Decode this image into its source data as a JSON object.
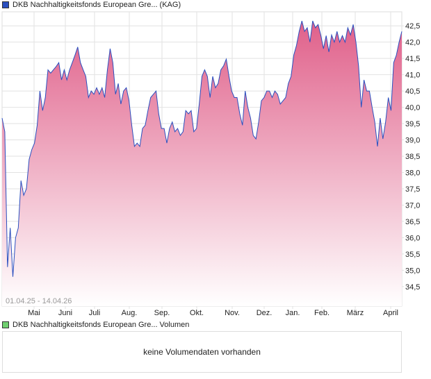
{
  "price_legend": {
    "label": "DKB Nachhaltigkeitsfonds European Gre... (KAG)",
    "color": "#2a4fbf"
  },
  "volume_legend": {
    "label": "DKB Nachhaltigkeitsfonds European Gre... Volumen",
    "color": "#6fcf6f",
    "empty_text": "keine Volumendaten vorhanden"
  },
  "chart_data": {
    "type": "area",
    "date_range": "01.04.25 - 14.04.26",
    "x_tick_labels": [
      "Mai",
      "Juni",
      "Juli",
      "Aug.",
      "Sep.",
      "Okt.",
      "Nov.",
      "Dez.",
      "Jan.",
      "Feb.",
      "März",
      "April"
    ],
    "y_ticks": [
      34.5,
      35.0,
      35.5,
      36.0,
      36.5,
      37.0,
      37.5,
      38.0,
      38.5,
      39.0,
      39.5,
      40.0,
      40.5,
      41.0,
      41.5,
      42.0,
      42.5
    ],
    "y_tick_labels": [
      "34,5",
      "35,0",
      "35,5",
      "36,0",
      "36,5",
      "37,0",
      "37,5",
      "38,0",
      "38,5",
      "39,0",
      "39,5",
      "40,0",
      "40,5",
      "41,0",
      "41,5",
      "42,0",
      "42,5"
    ],
    "ylim": [
      33.9,
      42.93
    ],
    "grid": true,
    "line_color": "#2a4fbf",
    "fill_top_color": "#e0608a",
    "fill_bottom_color": "#ffffff",
    "values": [
      39.67,
      39.25,
      35.1,
      36.3,
      34.8,
      36.0,
      36.3,
      37.75,
      37.3,
      37.5,
      38.4,
      38.7,
      38.9,
      39.45,
      40.5,
      39.9,
      40.3,
      41.15,
      41.05,
      41.15,
      41.25,
      41.37,
      40.84,
      41.15,
      40.84,
      41.15,
      41.37,
      41.6,
      41.85,
      41.37,
      41.15,
      40.95,
      40.3,
      40.5,
      40.4,
      40.6,
      40.4,
      40.6,
      40.3,
      41.15,
      41.8,
      41.37,
      40.4,
      40.73,
      40.1,
      40.5,
      40.6,
      40.2,
      39.45,
      38.8,
      38.9,
      38.8,
      39.35,
      39.45,
      39.9,
      40.3,
      40.4,
      40.5,
      39.8,
      39.35,
      39.35,
      38.9,
      39.35,
      39.55,
      39.25,
      39.35,
      39.14,
      39.25,
      39.9,
      39.8,
      39.9,
      39.25,
      39.35,
      40.1,
      40.95,
      41.15,
      40.95,
      40.3,
      40.95,
      40.6,
      40.73,
      41.15,
      41.27,
      41.48,
      40.95,
      40.5,
      40.3,
      40.3,
      39.8,
      39.45,
      40.5,
      40.0,
      39.67,
      39.14,
      39.03,
      39.55,
      40.2,
      40.3,
      40.5,
      40.5,
      40.3,
      40.5,
      40.4,
      40.1,
      40.2,
      40.3,
      40.73,
      40.95,
      41.6,
      41.9,
      42.33,
      42.65,
      42.33,
      42.44,
      42.0,
      42.65,
      42.44,
      42.54,
      42.22,
      41.8,
      42.2,
      41.7,
      42.22,
      42.0,
      42.33,
      42.0,
      42.2,
      42.0,
      42.44,
      42.22,
      42.54,
      42.0,
      41.27,
      40.0,
      40.84,
      40.5,
      40.5,
      40.0,
      39.55,
      38.8,
      39.67,
      39.03,
      39.55,
      40.3,
      39.9,
      41.37,
      41.6,
      42.0,
      42.33
    ]
  }
}
